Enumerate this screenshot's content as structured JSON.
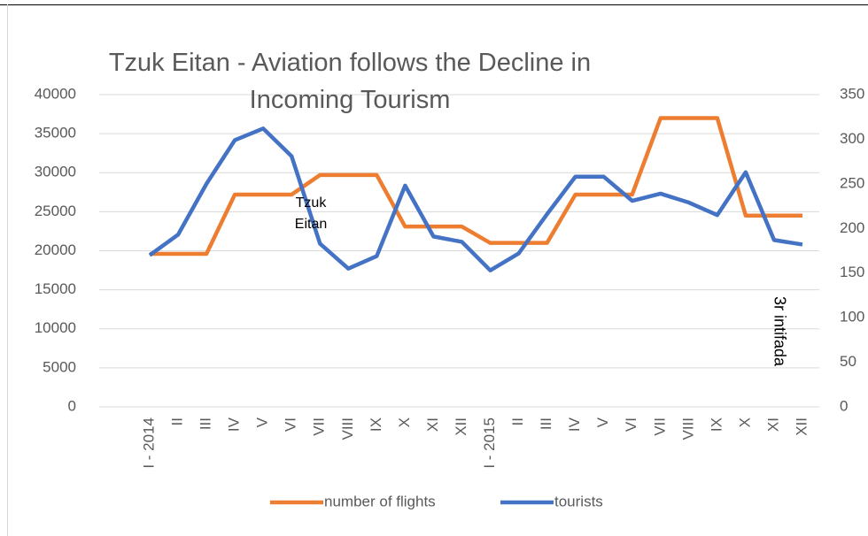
{
  "chart_data": {
    "type": "line",
    "title": "Tzuk Eitan - Aviation follows the Decline in Incoming Tourism",
    "categories": [
      "I - 2014",
      "II",
      "III",
      "IV",
      "V",
      "VI",
      "VII",
      "VIII",
      "IX",
      "X",
      "XI",
      "XII",
      "I - 2015",
      "II",
      "III",
      "IV",
      "V",
      "VI",
      "VII",
      "VIII",
      "IX",
      "X",
      "XI",
      "XII"
    ],
    "series": [
      {
        "name": "number of flights",
        "color": "#ED7D31",
        "values": [
          19600,
          19600,
          19600,
          27200,
          27200,
          27200,
          29700,
          29700,
          29700,
          23100,
          23100,
          23100,
          21000,
          21000,
          21000,
          27200,
          27200,
          27200,
          37000,
          37000,
          37000,
          24500,
          24500,
          24500
        ]
      },
      {
        "name": "tourists",
        "color": "#4472C4",
        "axis": "y2",
        "values": [
          170,
          193,
          250,
          299,
          312,
          281,
          183,
          155,
          169,
          248,
          191,
          185,
          153,
          172,
          216,
          258,
          258,
          231,
          239,
          229,
          215,
          263,
          187,
          182
        ]
      }
    ],
    "ylim": [
      0,
      40000
    ],
    "yticks": [
      0,
      5000,
      10000,
      15000,
      20000,
      25000,
      30000,
      35000,
      40000
    ],
    "y2lim": [
      0,
      350
    ],
    "y2ticks": [
      0,
      50,
      100,
      150,
      200,
      250,
      300,
      350
    ],
    "grid": true,
    "legend": "bottom",
    "annotations": [
      "Tzuk Eitan",
      "3r intifada"
    ]
  }
}
